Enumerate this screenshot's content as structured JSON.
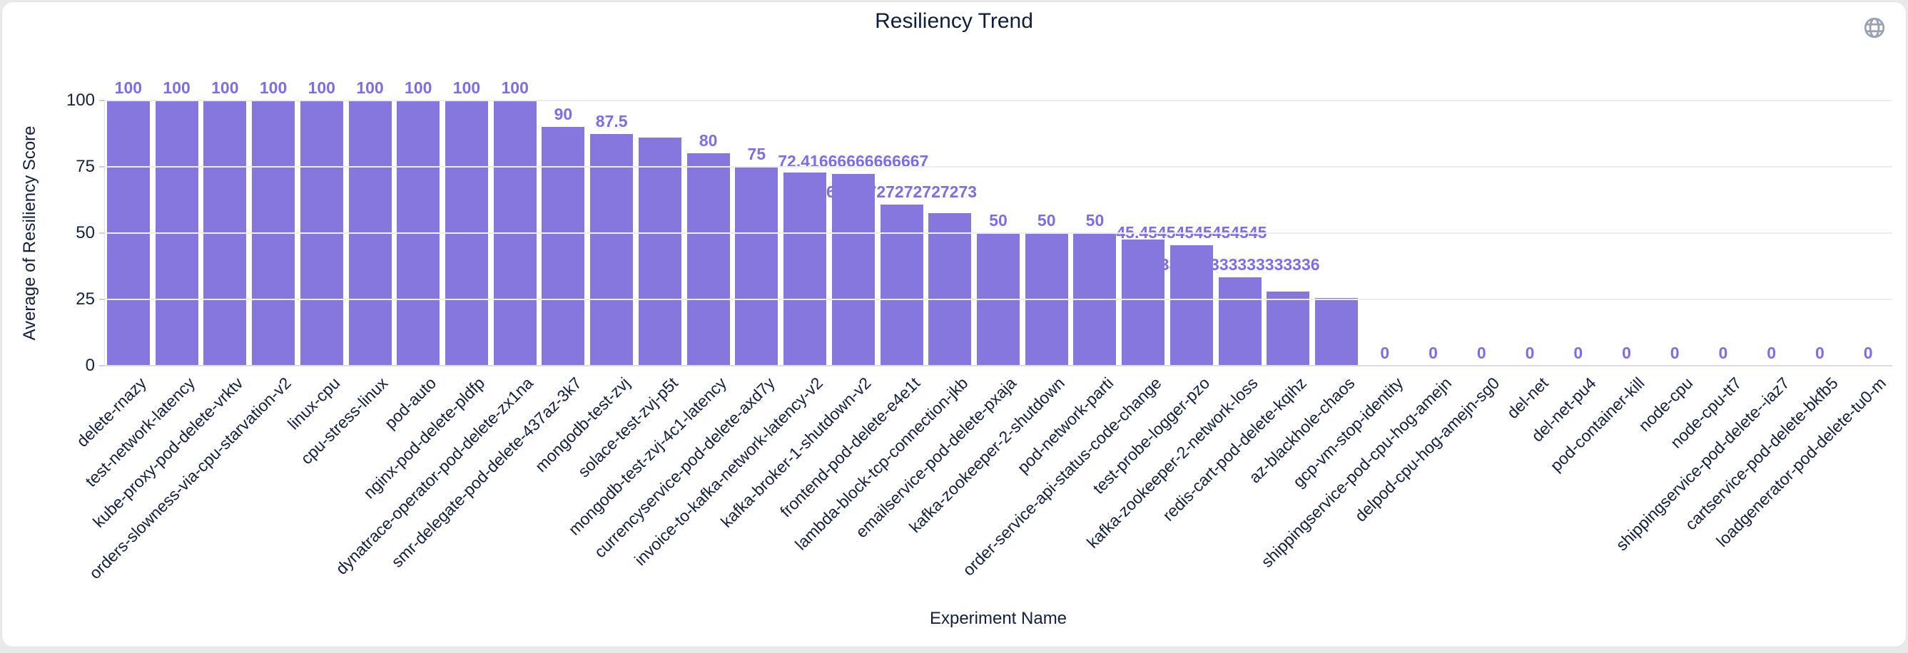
{
  "header": {
    "title": "Resiliency Trend",
    "globe_icon": "globe-icon"
  },
  "y_axis": {
    "title": "Average of Resiliency Score",
    "tick_labels": [
      "100",
      "75",
      "50",
      "25",
      "0"
    ]
  },
  "x_axis": {
    "title": "Experiment Name"
  },
  "colors": {
    "bar": "#8577de",
    "value_label": "#7c6ee4",
    "axis_text": "#13203f",
    "grid": "#ececf1",
    "card_bg": "#ffffff",
    "page_bg": "#e9e9e9",
    "globe_icon": "#9aa2b2"
  },
  "chart_data": {
    "type": "bar",
    "title": "Resiliency Trend",
    "xlabel": "Experiment Name",
    "ylabel": "Average of Resiliency Score",
    "ylim": [
      0,
      100
    ],
    "y_ticks": [
      0,
      25,
      50,
      75,
      100
    ],
    "grid": true,
    "legend": false,
    "bar_color": "#8577de",
    "categories": [
      "delete-rnazy",
      "test-network-latency",
      "kube-proxy-pod-delete-vrktv",
      "orders-slowness-via-cpu-starvation-v2",
      "linux-cpu",
      "cpu-stress-linux",
      "pod-auto",
      "nginx-pod-delete-pldfp",
      "dynatrace-operator-pod-delete-zx1na",
      "smr-delegate-pod-delete-437az-3k7",
      "mongodb-test-zvj",
      "solace-test-zvj-p5t",
      "mongodb-test-zvj-4c1-latency",
      "currencyservice-pod-delete-axd7y",
      "invoice-to-kafka-network-latency-v2",
      "kafka-broker-1-shutdown-v2",
      "frontend-pod-delete-e4e1t",
      "lambda-block-tcp-connection-jkb",
      "emailservice-pod-delete-pxaja",
      "kafka-zookeeper-2-shutdown",
      "pod-network-parti",
      "order-service-api-status-code-change",
      "test-probe-logger-pzo",
      "kafka-zookeeper-2-network-loss",
      "redis-cart-pod-delete-kqihz",
      "az-blackhole-chaos",
      "gcp-vm-stop-identity",
      "shippingservice-pod-cpu-hog-amejn",
      "delpod-cpu-hog-amejn-sg0",
      "del-net",
      "del-net-pu4",
      "pod-container-kill",
      "node-cpu",
      "node-cpu-tt7",
      "shippingservice-pod-delete--iaz7",
      "cartservice-pod-delete-bkfb5",
      "loadgenerator-pod-delete-tu0-m"
    ],
    "values": [
      100,
      100,
      100,
      100,
      100,
      100,
      100,
      100,
      100,
      90,
      87.5,
      86,
      80,
      75,
      72.72727272727273,
      72.41666666666667,
      60.72727272727273,
      57.5,
      50,
      50,
      50,
      47.5,
      45.45454545454545,
      33.333333333333336,
      28,
      25.5,
      0,
      0,
      0,
      0,
      0,
      0,
      0,
      0,
      0,
      0,
      0
    ],
    "bar_labels": [
      "100",
      "100",
      "100",
      "100",
      "100",
      "100",
      "100",
      "100",
      "100",
      "90",
      "87.5",
      "",
      "80",
      "75",
      "",
      "72.41666666666667",
      "60.72727272727273",
      "",
      "50",
      "50",
      "50",
      "",
      "45.45454545454545",
      "33.333333333333336",
      "",
      "",
      "0",
      "0",
      "0",
      "0",
      "0",
      "0",
      "0",
      "0",
      "0",
      "0",
      "0"
    ]
  }
}
